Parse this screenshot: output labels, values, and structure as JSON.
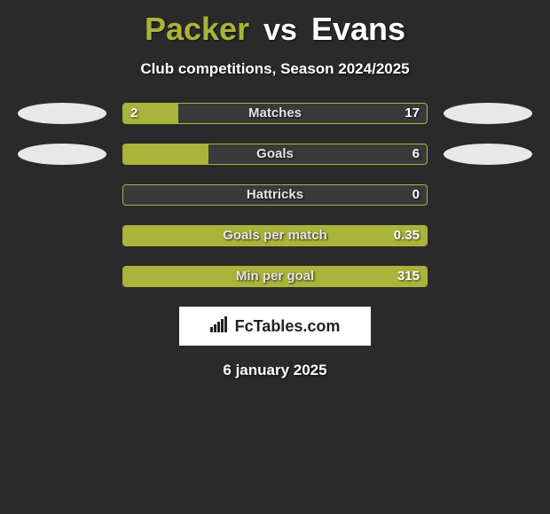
{
  "title": {
    "left": "Packer",
    "vs": "vs",
    "right": "Evans",
    "left_color": "#aab33a",
    "right_color": "#ffffff"
  },
  "subtitle": "Club competitions, Season 2024/2025",
  "accent_color": "#aab33a",
  "background_color": "#2a2a2a",
  "track_color": "#3a3a3a",
  "text_color": "#ffffff",
  "bar_track_width": 344,
  "rows": [
    {
      "label": "Matches",
      "left_val": "2",
      "right_val": "17",
      "left_pct": 18,
      "right_pct": 0,
      "show_ovals": true
    },
    {
      "label": "Goals",
      "left_val": "",
      "right_val": "6",
      "left_pct": 28,
      "right_pct": 0,
      "show_ovals": true
    },
    {
      "label": "Hattricks",
      "left_val": "",
      "right_val": "0",
      "left_pct": 0,
      "right_pct": 0,
      "show_ovals": false
    },
    {
      "label": "Goals per match",
      "left_val": "",
      "right_val": "0.35",
      "left_pct": 0,
      "right_pct": 100,
      "show_ovals": false
    },
    {
      "label": "Min per goal",
      "left_val": "",
      "right_val": "315",
      "left_pct": 0,
      "right_pct": 100,
      "show_ovals": false
    }
  ],
  "logo": {
    "icon_name": "bar-chart-icon",
    "text": "FcTables.com"
  },
  "date": "6 january 2025"
}
